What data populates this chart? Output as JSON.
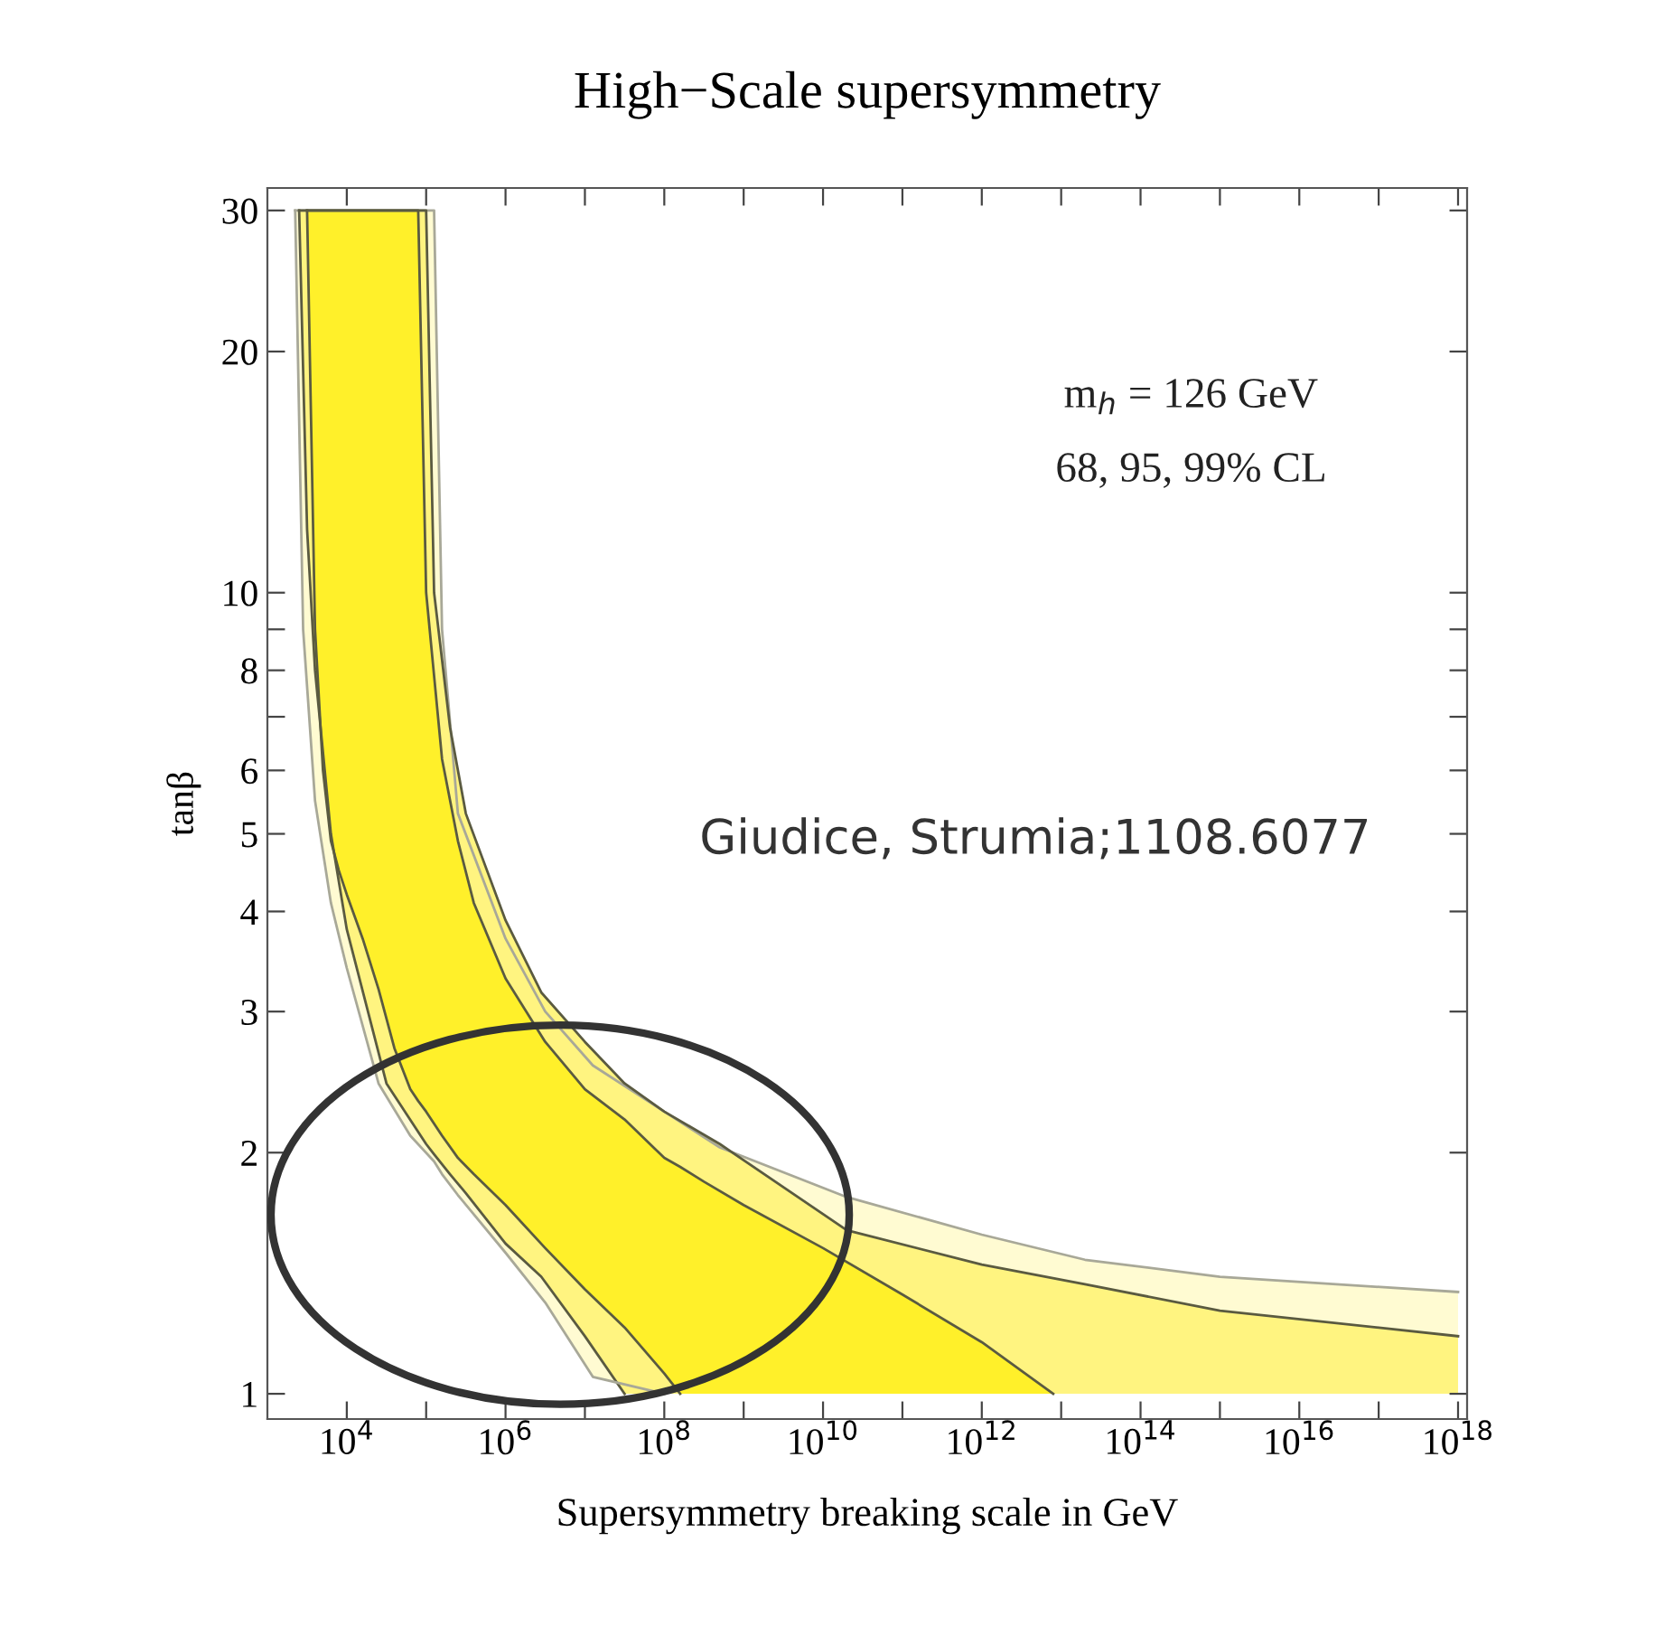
{
  "chart_data": {
    "type": "area",
    "title": "High−Scale supersymmetry",
    "xlabel": "Supersymmetry breaking scale in GeV",
    "ylabel": "tanβ",
    "annotations": [
      "m$_{h}$ = 126 GeV",
      "68, 95, 99% CL",
      "Giudice, Strumia;1108.6077"
    ],
    "log": "xy",
    "grid": false,
    "legend": false,
    "xlim": [
      1000,
      1.3e+18
    ],
    "ylim": [
      0.93,
      32
    ],
    "xticks": [
      {
        "value": 10000.0,
        "label": "10$^{4}$"
      },
      {
        "value": 100000.0,
        "label": null
      },
      {
        "value": 1000000.0,
        "label": "10$^{6}$"
      },
      {
        "value": 10000000.0,
        "label": null
      },
      {
        "value": 100000000.0,
        "label": "10$^{8}$"
      },
      {
        "value": 1000000000.0,
        "label": null
      },
      {
        "value": 10000000000.0,
        "label": "10$^{10}$"
      },
      {
        "value": 100000000000.0,
        "label": null
      },
      {
        "value": 1000000000000.0,
        "label": "10$^{12}$"
      },
      {
        "value": 10000000000000.0,
        "label": null
      },
      {
        "value": 100000000000000.0,
        "label": "10$^{14}$"
      },
      {
        "value": 1000000000000000.0,
        "label": null
      },
      {
        "value": 1e+16,
        "label": "10$^{16}$"
      },
      {
        "value": 1e+17,
        "label": null
      },
      {
        "value": 1e+18,
        "label": "10$^{18}$"
      }
    ],
    "yticks": [
      1,
      2,
      3,
      4,
      5,
      6,
      {
        "value": 7,
        "label": null
      },
      8,
      {
        "value": 9,
        "label": null
      },
      10,
      20,
      30
    ],
    "series": [
      {
        "color": "#fffbd2",
        "x": [
          2239,
          2818,
          3981,
          6310,
          10000.0,
          25120.0,
          63100.0,
          125900.0,
          158500.0,
          251200.0,
          1000000.0,
          3162000.0,
          12590000.0,
          100000000.0,
          501200000.0,
          19950000000.0,
          1000000000000.0,
          19950000000000.0,
          1000000000000000.0,
          1e+18
        ],
        "values": [
          30,
          30,
          30,
          30,
          30,
          30,
          30,
          30,
          9,
          5.3,
          3.7,
          3.0,
          2.57,
          2.25,
          2.03,
          1.76,
          1.58,
          1.47,
          1.4,
          1.34
        ]
      },
      {
        "color": "#fff480",
        "x": [
          2512,
          3162,
          3981,
          6310,
          10000.0,
          31620.0,
          100000.0,
          125900.0,
          199500.0,
          316200.0,
          1000000.0,
          2818000.0,
          10000000.0,
          31620000.0,
          100000000.0,
          501200000.0,
          19950000000.0,
          1000000000000.0,
          19950000000000.0,
          1000000000000000.0,
          1e+18
        ],
        "values": [
          30,
          30,
          30,
          30,
          30,
          30,
          30,
          10,
          6.8,
          5.3,
          3.9,
          3.17,
          2.75,
          2.44,
          2.25,
          2.05,
          1.6,
          1.45,
          1.37,
          1.27,
          1.18
        ]
      },
      {
        "color": "#fff02a",
        "x": [
          3162,
          3981,
          5012,
          6310,
          7943,
          10000.0,
          15850.0,
          25120.0,
          39810.0,
          63100.0,
          79430.0,
          100000.0,
          158500.0,
          251200.0,
          398100.0,
          1000000.0,
          3162000.0,
          10000000.0,
          31620000.0,
          100000000.0,
          158500000.0,
          316200000.0,
          1000000000.0,
          10000000000.0,
          100000000000.0,
          1000000000000.0,
          7943000000000.0
        ],
        "values": [
          30,
          30,
          30,
          30,
          30,
          30,
          30,
          30,
          30,
          30,
          30,
          10,
          6.2,
          4.9,
          4.1,
          3.3,
          2.75,
          2.4,
          2.2,
          1.97,
          1.92,
          1.84,
          1.72,
          1.52,
          1.33,
          1.16,
          1
        ]
      },
      {
        "type": "line",
        "color": "#5a5a40",
        "x": [
          3162,
          3981,
          5012,
          6310,
          7943,
          10000.0,
          15850.0,
          25120.0,
          39810.0,
          63100.0,
          79430.0,
          100000.0,
          158500.0,
          251200.0,
          398100.0,
          1000000.0,
          3162000.0,
          10000000.0,
          31620000.0,
          100000000.0,
          158500000.0
        ],
        "values": [
          30,
          9,
          6.0,
          4.9,
          4.5,
          4.2,
          3.7,
          3.2,
          2.7,
          2.4,
          2.32,
          2.25,
          2.1,
          1.97,
          1.88,
          1.72,
          1.52,
          1.35,
          1.21,
          1.06,
          1
        ]
      },
      {
        "type": "line",
        "color": "#5a5a40",
        "x": [
          2512,
          3162,
          3981,
          6310,
          10000.0,
          31620.0,
          100000.0,
          125900.0,
          199500.0,
          316200.0,
          1000000.0,
          2818000.0,
          10000000.0,
          31620000.0
        ],
        "values": [
          30,
          12,
          8,
          5.0,
          3.8,
          2.44,
          2.05,
          1.99,
          1.88,
          1.78,
          1.54,
          1.4,
          1.18,
          1.0
        ]
      },
      {
        "type": "line",
        "color": "#a8a898",
        "x": [
          2239,
          2818,
          3981,
          6310,
          10000.0,
          25120.0,
          63100.0,
          125900.0,
          158500.0,
          251200.0,
          1000000.0,
          3162000.0,
          12590000.0,
          100000000.0
        ],
        "values": [
          30,
          9,
          5.5,
          4.1,
          3.4,
          2.44,
          2.1,
          1.95,
          1.88,
          1.77,
          1.5,
          1.3,
          1.05,
          1
        ]
      }
    ]
  }
}
